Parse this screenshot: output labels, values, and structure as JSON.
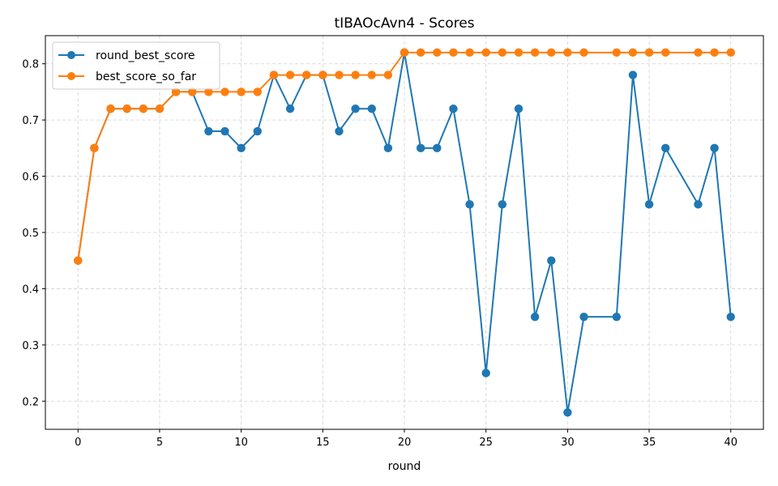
{
  "chart_data": {
    "type": "line",
    "title": "tIBAOcAvn4 - Scores",
    "xlabel": "round",
    "ylabel": "",
    "xlim": [
      -2,
      42
    ],
    "ylim": [
      0.15,
      0.85
    ],
    "xticks": [
      0,
      5,
      10,
      15,
      20,
      25,
      30,
      35,
      40
    ],
    "yticks": [
      0.2,
      0.3,
      0.4,
      0.5,
      0.6,
      0.7,
      0.8
    ],
    "grid": true,
    "legend_position": "top-left",
    "series": [
      {
        "name": "round_best_score",
        "color": "#1f77b4",
        "points": [
          [
            0,
            0.45
          ],
          [
            1,
            0.65
          ],
          [
            2,
            0.72
          ],
          [
            3,
            0.72
          ],
          [
            4,
            0.72
          ],
          [
            5,
            0.72
          ],
          [
            6,
            0.75
          ],
          [
            7,
            0.75
          ],
          [
            8,
            0.68
          ],
          [
            9,
            0.68
          ],
          [
            10,
            0.65
          ],
          [
            11,
            0.68
          ],
          [
            12,
            0.78
          ],
          [
            13,
            0.72
          ],
          [
            14,
            0.78
          ],
          [
            15,
            0.78
          ],
          [
            16,
            0.68
          ],
          [
            17,
            0.72
          ],
          [
            18,
            0.72
          ],
          [
            19,
            0.65
          ],
          [
            20,
            0.82
          ],
          [
            21,
            0.65
          ],
          [
            22,
            0.65
          ],
          [
            23,
            0.72
          ],
          [
            24,
            0.55
          ],
          [
            25,
            0.25
          ],
          [
            26,
            0.55
          ],
          [
            27,
            0.72
          ],
          [
            28,
            0.35
          ],
          [
            29,
            0.45
          ],
          [
            30,
            0.18
          ],
          [
            31,
            0.35
          ],
          [
            33,
            0.35
          ],
          [
            34,
            0.78
          ],
          [
            35,
            0.55
          ],
          [
            36,
            0.65
          ],
          [
            38,
            0.55
          ],
          [
            39,
            0.65
          ],
          [
            40,
            0.35
          ]
        ]
      },
      {
        "name": "best_score_so_far",
        "color": "#ff7f0e",
        "points": [
          [
            0,
            0.45
          ],
          [
            1,
            0.65
          ],
          [
            2,
            0.72
          ],
          [
            3,
            0.72
          ],
          [
            4,
            0.72
          ],
          [
            5,
            0.72
          ],
          [
            6,
            0.75
          ],
          [
            7,
            0.75
          ],
          [
            8,
            0.75
          ],
          [
            9,
            0.75
          ],
          [
            10,
            0.75
          ],
          [
            11,
            0.75
          ],
          [
            12,
            0.78
          ],
          [
            13,
            0.78
          ],
          [
            14,
            0.78
          ],
          [
            15,
            0.78
          ],
          [
            16,
            0.78
          ],
          [
            17,
            0.78
          ],
          [
            18,
            0.78
          ],
          [
            19,
            0.78
          ],
          [
            20,
            0.82
          ],
          [
            21,
            0.82
          ],
          [
            22,
            0.82
          ],
          [
            23,
            0.82
          ],
          [
            24,
            0.82
          ],
          [
            25,
            0.82
          ],
          [
            26,
            0.82
          ],
          [
            27,
            0.82
          ],
          [
            28,
            0.82
          ],
          [
            29,
            0.82
          ],
          [
            30,
            0.82
          ],
          [
            31,
            0.82
          ],
          [
            33,
            0.82
          ],
          [
            34,
            0.82
          ],
          [
            35,
            0.82
          ],
          [
            36,
            0.82
          ],
          [
            38,
            0.82
          ],
          [
            39,
            0.82
          ],
          [
            40,
            0.82
          ]
        ]
      }
    ]
  }
}
